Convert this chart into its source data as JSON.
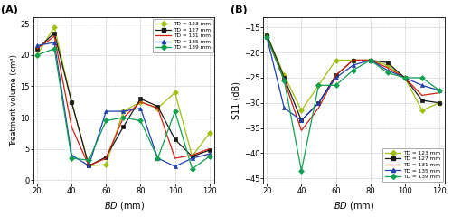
{
  "bd_all": [
    20,
    30,
    40,
    50,
    60,
    70,
    80,
    90,
    100,
    110,
    120
  ],
  "vol": {
    "123": [
      20.0,
      24.5,
      12.5,
      2.3,
      2.5,
      11.0,
      12.5,
      11.5,
      14.0,
      3.8,
      7.5
    ],
    "127": [
      21.0,
      23.5,
      12.5,
      2.3,
      3.7,
      8.5,
      13.0,
      11.8,
      6.5,
      3.8,
      4.8
    ],
    "131": [
      21.0,
      23.0,
      8.5,
      2.3,
      3.5,
      10.0,
      12.5,
      11.5,
      3.5,
      4.0,
      5.0
    ],
    "135": [
      21.5,
      22.0,
      4.0,
      2.3,
      11.0,
      11.0,
      11.5,
      3.5,
      2.2,
      3.5,
      4.2
    ],
    "139": [
      20.0,
      21.0,
      3.5,
      3.2,
      9.5,
      10.0,
      9.5,
      3.5,
      11.0,
      1.8,
      3.8
    ]
  },
  "s11": {
    "123": [
      -16.5,
      -24.5,
      -31.5,
      -26.5,
      -21.5,
      -21.5,
      -21.5,
      -22.5,
      -25.0,
      -31.5,
      -30.0
    ],
    "127": [
      -16.5,
      -25.0,
      -33.5,
      -30.0,
      -24.5,
      -21.5,
      -21.5,
      -22.0,
      -25.0,
      -29.5,
      -30.0
    ],
    "131": [
      -17.0,
      -25.5,
      -35.5,
      -31.0,
      -24.5,
      -21.5,
      -21.5,
      -23.0,
      -25.0,
      -28.5,
      -28.0
    ],
    "135": [
      -17.0,
      -31.0,
      -33.5,
      -30.0,
      -25.0,
      -22.5,
      -21.5,
      -23.5,
      -25.0,
      -26.5,
      -27.5
    ],
    "139": [
      -17.0,
      -25.5,
      -43.5,
      -26.5,
      -26.5,
      -23.5,
      -21.5,
      -24.0,
      -25.0,
      -25.0,
      -27.5
    ]
  },
  "colors": {
    "123": "#9fc010",
    "127": "#1a1a1a",
    "131": "#d02010",
    "135": "#2040b0",
    "139": "#10a050"
  },
  "bd_ticks": [
    20,
    40,
    60,
    80,
    100,
    120
  ],
  "vol_yticks": [
    0,
    5,
    10,
    15,
    20,
    25
  ],
  "s11_yticks": [
    -45,
    -40,
    -35,
    -30,
    -25,
    -20,
    -15
  ],
  "vol_ylim": [
    -0.5,
    26
  ],
  "s11_ylim": [
    -46,
    -13
  ],
  "vol_ylabel": "Treatment volume (cm³)",
  "s11_ylabel": "S11 (dB)",
  "td_labels": [
    "TD = 123 mm",
    "TD = 127 mm",
    "TD = 131 mm",
    "TD = 135 mm",
    "TD = 139 mm"
  ],
  "td_keys": [
    "123",
    "127",
    "131",
    "135",
    "139"
  ]
}
